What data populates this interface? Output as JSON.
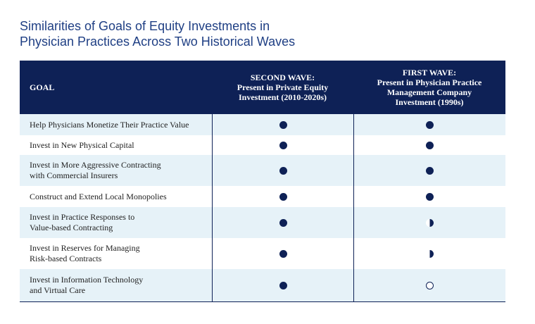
{
  "title": {
    "line1": "Similarities of Goals of Equity Investments in",
    "line2": "Physician Practices Across Two Historical Waves"
  },
  "header": {
    "goal": "GOAL",
    "second_wave": [
      "SECOND WAVE:",
      "Present in Private Equity",
      "Investment (2010-2020s)"
    ],
    "first_wave": [
      "FIRST WAVE:",
      "Present in Physician Practice",
      "Management Company",
      "Investment (1990s)"
    ]
  },
  "legend_levels": {
    "full": 1,
    "half": 0.5,
    "empty": 0
  },
  "rows": [
    {
      "goal": [
        "Help Physicians Monetize Their Practice Value"
      ],
      "second_wave": "full",
      "first_wave": "full"
    },
    {
      "goal": [
        "Invest in New Physical Capital"
      ],
      "second_wave": "full",
      "first_wave": "full"
    },
    {
      "goal": [
        "Invest in More Aggressive Contracting",
        "with Commercial Insurers"
      ],
      "second_wave": "full",
      "first_wave": "full"
    },
    {
      "goal": [
        "Construct and Extend Local Monopolies"
      ],
      "second_wave": "full",
      "first_wave": "full"
    },
    {
      "goal": [
        "Invest in Practice Responses to",
        "Value-based Contracting"
      ],
      "second_wave": "full",
      "first_wave": "half"
    },
    {
      "goal": [
        "Invest in Reserves for Managing",
        "Risk-based Contracts"
      ],
      "second_wave": "full",
      "first_wave": "half"
    },
    {
      "goal": [
        "Invest in Information Technology",
        "and Virtual Care"
      ],
      "second_wave": "full",
      "first_wave": "empty"
    }
  ],
  "colors": {
    "navy": "#0e2156",
    "title_blue": "#1f3f84",
    "row_shade": "#e6f2f8"
  }
}
